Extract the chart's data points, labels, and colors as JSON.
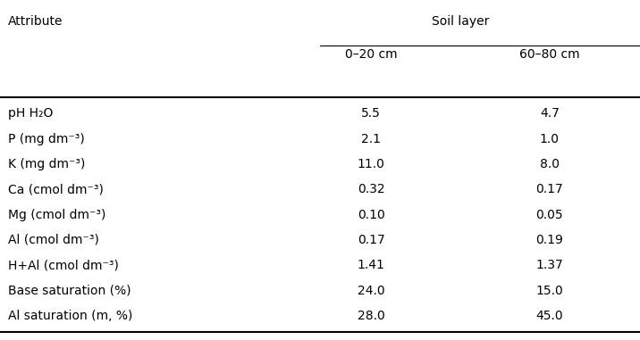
{
  "title_col1": "Attribute",
  "title_group": "Soil layer",
  "col2_header": "0–20 cm",
  "col3_header": "60–80 cm",
  "rows": [
    {
      "attr": "pH H₂O",
      "v1": "5.5",
      "v2": "4.7"
    },
    {
      "attr": "P (mg dm⁻³)",
      "v1": "2.1",
      "v2": "1.0"
    },
    {
      "attr": "K (mg dm⁻³)",
      "v1": "11.0",
      "v2": "8.0"
    },
    {
      "attr": "Ca (cmol⁣ dm⁻³)",
      "v1": "0.32",
      "v2": "0.17"
    },
    {
      "attr": "Mg (cmol⁣ dm⁻³)",
      "v1": "0.10",
      "v2": "0.05"
    },
    {
      "attr": "Al (cmol⁣ dm⁻³)",
      "v1": "0.17",
      "v2": "0.19"
    },
    {
      "attr": "H+Al (cmol⁣ dm⁻³)",
      "v1": "1.41",
      "v2": "1.37"
    },
    {
      "attr": "Base saturation (%)",
      "v1": "24.0",
      "v2": "15.0"
    },
    {
      "attr": "Al saturation (m, %)",
      "v1": "28.0",
      "v2": "45.0"
    }
  ],
  "bg_color": "#ffffff",
  "text_color": "#000000",
  "font_size": 10,
  "header_font_size": 10
}
